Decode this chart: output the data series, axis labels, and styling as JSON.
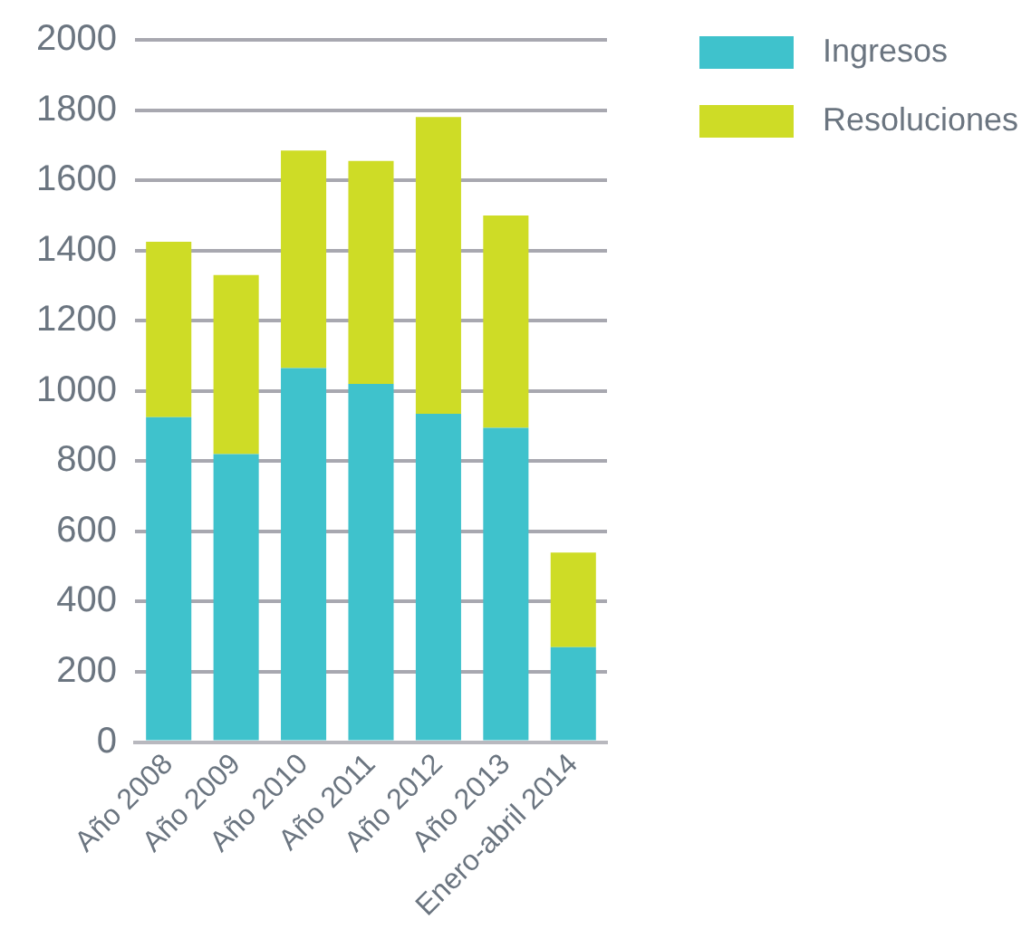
{
  "chart_data": {
    "type": "bar",
    "stacked": true,
    "categories": [
      "Año 2008",
      "Año 2009",
      "Año 2010",
      "Año 2011",
      "Año 2012",
      "Año 2013",
      "Enero-abril 2014"
    ],
    "series": [
      {
        "name": "Ingresos",
        "color": "#3fc2cc",
        "values": [
          925,
          820,
          1065,
          1020,
          935,
          895,
          270
        ]
      },
      {
        "name": "Resoluciones",
        "color": "#cedc26",
        "values": [
          500,
          510,
          620,
          635,
          845,
          605,
          270
        ]
      }
    ],
    "ylim": [
      0,
      2000
    ],
    "yticks": [
      0,
      200,
      400,
      600,
      800,
      1000,
      1200,
      1400,
      1600,
      1800,
      2000
    ],
    "grid": "y",
    "legend": "top right"
  }
}
